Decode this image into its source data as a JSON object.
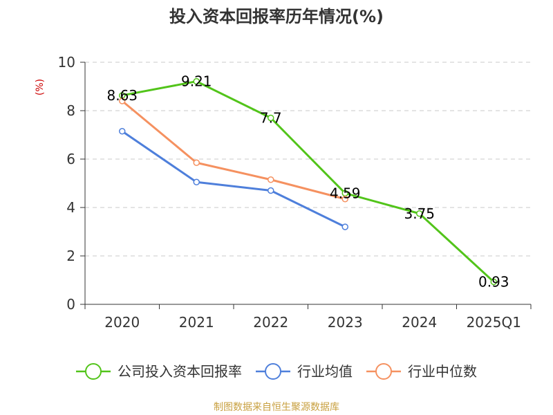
{
  "chart_data": {
    "type": "line",
    "title": "投入资本回报率历年情况(%)",
    "ylabel": "(%)",
    "categories": [
      "2020",
      "2021",
      "2022",
      "2023",
      "2024",
      "2025Q1"
    ],
    "ylim": [
      0,
      10
    ],
    "yticks": [
      0,
      2,
      4,
      6,
      8,
      10
    ],
    "grid": "horizontal-dashed",
    "legend_position": "bottom",
    "series": [
      {
        "name": "公司投入资本回报率",
        "color": "#52c41a",
        "values": [
          8.63,
          9.21,
          7.7,
          4.59,
          3.75,
          0.93
        ],
        "labeled": true
      },
      {
        "name": "行业均值",
        "color": "#4e7fdb",
        "values": [
          7.15,
          5.05,
          4.7,
          3.2,
          null,
          null
        ],
        "labeled": false
      },
      {
        "name": "行业中位数",
        "color": "#f59160",
        "values": [
          8.4,
          5.85,
          5.15,
          4.35,
          null,
          null
        ],
        "labeled": false
      }
    ],
    "data_labels": [
      "8.63",
      "9.21",
      "7.7",
      "4.59",
      "3.75",
      "0.93"
    ]
  },
  "source": "制图数据来自恒生聚源数据库"
}
